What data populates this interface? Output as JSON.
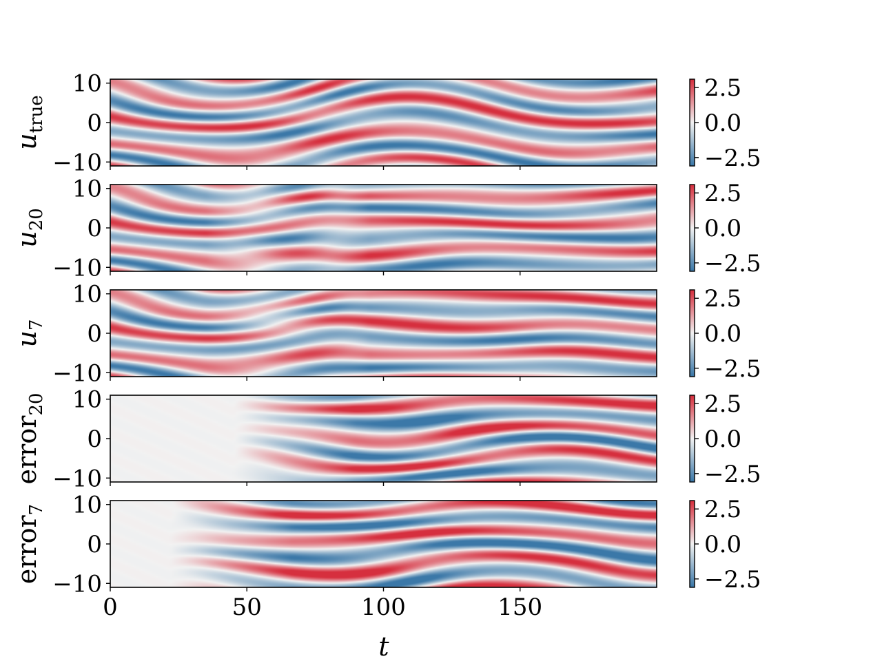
{
  "chart_data": {
    "type": "heatmap",
    "x_axis": {
      "label": "t",
      "range": [
        0,
        200
      ],
      "ticks": [
        0,
        50,
        100,
        150
      ],
      "tick_labels": [
        "0",
        "50",
        "100",
        "150"
      ]
    },
    "y_axis": {
      "range": [
        -11,
        11
      ],
      "ticks": [
        10,
        0,
        -10
      ],
      "tick_labels": [
        "10",
        "0",
        "−10"
      ]
    },
    "colormap": {
      "low_color": "#3b78a8",
      "mid_color": "#f2f2f2",
      "high_color": "#d62f3e",
      "vmin": -3.1,
      "vmax": 3.1,
      "ticks": [
        2.5,
        0.0,
        -2.5
      ],
      "tick_labels": [
        "2.5",
        "0.0",
        "−2.5"
      ]
    },
    "panels": [
      {
        "key": "u_true",
        "ylabel_main": "u",
        "ylabel_sub": "true",
        "sub_italic": false,
        "main_italic": true,
        "kind": "field",
        "seed": 0
      },
      {
        "key": "u_20",
        "ylabel_main": "u",
        "ylabel_sub": "20",
        "sub_italic": false,
        "main_italic": true,
        "kind": "field",
        "seed": 1
      },
      {
        "key": "u_7",
        "ylabel_main": "u",
        "ylabel_sub": "7",
        "sub_italic": false,
        "main_italic": true,
        "kind": "field",
        "seed": 2
      },
      {
        "key": "error_20",
        "ylabel_main": "error",
        "ylabel_sub": "20",
        "sub_italic": false,
        "main_italic": false,
        "kind": "error",
        "onset": 45,
        "seed": 3
      },
      {
        "key": "error_7",
        "ylabel_main": "error",
        "ylabel_sub": "7",
        "sub_italic": false,
        "main_italic": false,
        "kind": "error",
        "onset": 22,
        "seed": 4
      }
    ]
  }
}
